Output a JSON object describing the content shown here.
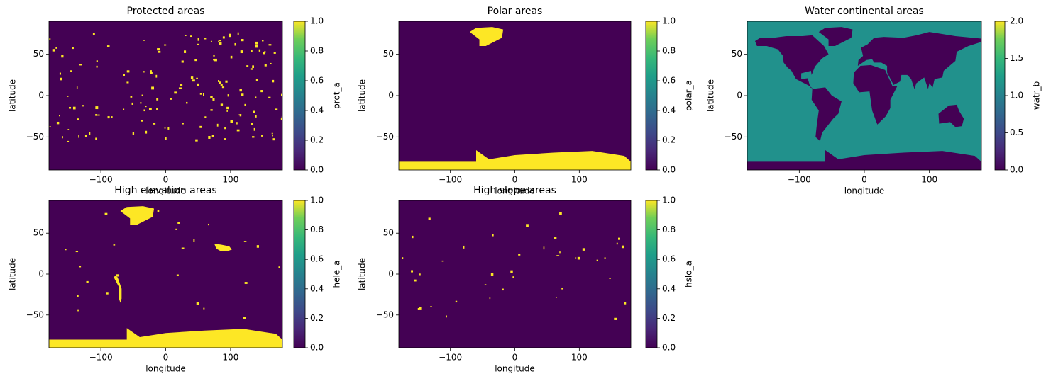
{
  "chart_data": [
    {
      "type": "heatmap",
      "title": "Protected areas",
      "xlabel": "longitude",
      "ylabel": "latitude",
      "xlim": [
        -180,
        180
      ],
      "xticks": [
        {
          "value": -100,
          "label": "−100"
        },
        0,
        100
      ],
      "ylim": [
        -90,
        90
      ],
      "yticks": [
        {
          "value": -50,
          "label": "−50"
        },
        0,
        50
      ],
      "colormap": "viridis",
      "colorbar": {
        "label": "prot_a",
        "lim": [
          0,
          1
        ],
        "ticks": [
          {
            "value": 0,
            "label": "0.0"
          },
          {
            "value": 0.2,
            "label": "0.2"
          },
          {
            "value": 0.4,
            "label": "0.4"
          },
          {
            "value": 0.6,
            "label": "0.6"
          },
          {
            "value": 0.8,
            "label": "0.8"
          },
          {
            "value": 1,
            "label": "1.0"
          }
        ]
      }
    },
    {
      "type": "heatmap",
      "title": "Polar areas",
      "xlabel": "longitude",
      "ylabel": "latitude",
      "xlim": [
        -180,
        180
      ],
      "xticks": [
        {
          "value": -100,
          "label": "−100"
        },
        0,
        100
      ],
      "ylim": [
        -90,
        90
      ],
      "yticks": [
        {
          "value": -50,
          "label": "−50"
        },
        0,
        50
      ],
      "colormap": "viridis",
      "colorbar": {
        "label": "polar_a",
        "lim": [
          0,
          1
        ],
        "ticks": [
          {
            "value": 0,
            "label": "0.0"
          },
          {
            "value": 0.2,
            "label": "0.2"
          },
          {
            "value": 0.4,
            "label": "0.4"
          },
          {
            "value": 0.6,
            "label": "0.6"
          },
          {
            "value": 0.8,
            "label": "0.8"
          },
          {
            "value": 1,
            "label": "1.0"
          }
        ]
      }
    },
    {
      "type": "heatmap",
      "title": "Water continental areas",
      "xlabel": "longitude",
      "ylabel": "latitude",
      "xlim": [
        -180,
        180
      ],
      "xticks": [
        {
          "value": -100,
          "label": "−100"
        },
        0,
        100
      ],
      "ylim": [
        -90,
        90
      ],
      "yticks": [
        {
          "value": -50,
          "label": "−50"
        },
        0,
        50
      ],
      "colormap": "viridis",
      "colorbar": {
        "label": "watr_b",
        "lim": [
          0,
          2
        ],
        "ticks": [
          {
            "value": 0,
            "label": "0.0"
          },
          {
            "value": 0.5,
            "label": "0.5"
          },
          {
            "value": 1,
            "label": "1.0"
          },
          {
            "value": 1.5,
            "label": "1.5"
          },
          {
            "value": 2,
            "label": "2.0"
          }
        ]
      }
    },
    {
      "type": "heatmap",
      "title": "High elevation areas",
      "xlabel": "longitude",
      "ylabel": "latitude",
      "xlim": [
        -180,
        180
      ],
      "xticks": [
        {
          "value": -100,
          "label": "−100"
        },
        0,
        100
      ],
      "ylim": [
        -90,
        90
      ],
      "yticks": [
        {
          "value": -50,
          "label": "−50"
        },
        0,
        50
      ],
      "colormap": "viridis",
      "colorbar": {
        "label": "hele_a",
        "lim": [
          0,
          1
        ],
        "ticks": [
          {
            "value": 0,
            "label": "0.0"
          },
          {
            "value": 0.2,
            "label": "0.2"
          },
          {
            "value": 0.4,
            "label": "0.4"
          },
          {
            "value": 0.6,
            "label": "0.6"
          },
          {
            "value": 0.8,
            "label": "0.8"
          },
          {
            "value": 1,
            "label": "1.0"
          }
        ]
      }
    },
    {
      "type": "heatmap",
      "title": "High slope areas",
      "xlabel": "longitude",
      "ylabel": "latitude",
      "xlim": [
        -180,
        180
      ],
      "xticks": [
        {
          "value": -100,
          "label": "−100"
        },
        0,
        100
      ],
      "ylim": [
        -90,
        90
      ],
      "yticks": [
        {
          "value": -50,
          "label": "−50"
        },
        0,
        50
      ],
      "colormap": "viridis",
      "colorbar": {
        "label": "hslo_a",
        "lim": [
          0,
          1
        ],
        "ticks": [
          {
            "value": 0,
            "label": "0.0"
          },
          {
            "value": 0.2,
            "label": "0.2"
          },
          {
            "value": 0.4,
            "label": "0.4"
          },
          {
            "value": 0.6,
            "label": "0.6"
          },
          {
            "value": 0.8,
            "label": "0.8"
          },
          {
            "value": 1,
            "label": "1.0"
          }
        ]
      }
    }
  ]
}
